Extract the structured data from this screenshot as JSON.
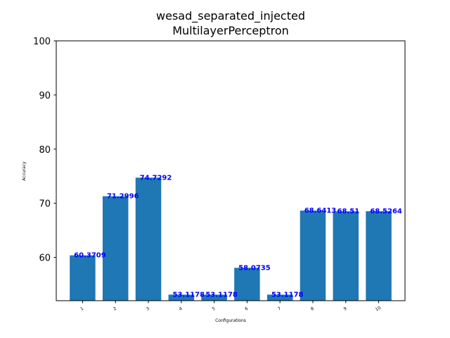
{
  "chart_data": {
    "type": "bar",
    "title_line1": "wesad_separated_injected",
    "title_line2": "MultilayerPerceptron",
    "xlabel": "Configurations",
    "ylabel": "Accuracy",
    "categories": [
      "1",
      "2",
      "3",
      "4",
      "5",
      "6",
      "7",
      "8",
      "9",
      "10"
    ],
    "values": [
      60.3709,
      71.2996,
      74.7292,
      53.1178,
      53.1178,
      58.0735,
      53.1178,
      68.6413,
      68.51,
      68.5264
    ],
    "value_labels": [
      "60.3709",
      "71.2996",
      "74.7292",
      "53.1178",
      "53.1178",
      "58.0735",
      "53.1178",
      "68.6413",
      "68.51",
      "68.5264"
    ],
    "ylim": [
      52,
      100
    ],
    "yticks": [
      60,
      70,
      80,
      90,
      100
    ],
    "ytick_labels": [
      "60",
      "70",
      "80",
      "90",
      "100"
    ],
    "grid": false,
    "bar_color": "#1f77b4",
    "label_color": "#0000ff"
  }
}
